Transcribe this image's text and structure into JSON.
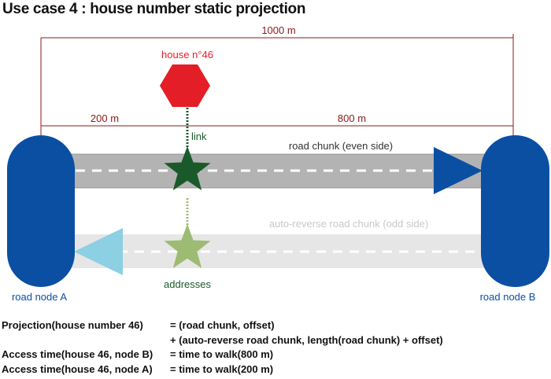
{
  "title": "Use case 4 : house number static projection",
  "measurements": {
    "total": "1000 m",
    "left_segment": "200 m",
    "right_segment": "800 m"
  },
  "house": {
    "label": "house n°46"
  },
  "link": {
    "label": "link"
  },
  "roads": {
    "even": {
      "label": "road chunk (even side)"
    },
    "odd": {
      "label": "auto-reverse road chunk (odd side)"
    }
  },
  "addresses": {
    "label": "addresses"
  },
  "nodes": {
    "a": {
      "label": "road node A"
    },
    "b": {
      "label": "road node B"
    }
  },
  "formulas": [
    {
      "left": "Projection(house number 46)",
      "right": "= (road chunk, offset)"
    },
    {
      "left": "",
      "right": "+ (auto-reverse road chunk, length(road chunk) + offset)"
    },
    {
      "left": "Access time(house 46, node B)",
      "right": "= time to walk(800 m)"
    },
    {
      "left": "Access time(house 46, node A)",
      "right": "= time to walk(200 m)"
    }
  ],
  "colors": {
    "measure": "#8b1a1a",
    "house": "#e41e26",
    "node": "#0b4fa3",
    "even_road": "#b3b3b3",
    "odd_road": "#e6e6e6",
    "star_dark": "#1a5a2a",
    "star_light": "#9dbb72",
    "arrow_light": "#8dcfe3"
  }
}
